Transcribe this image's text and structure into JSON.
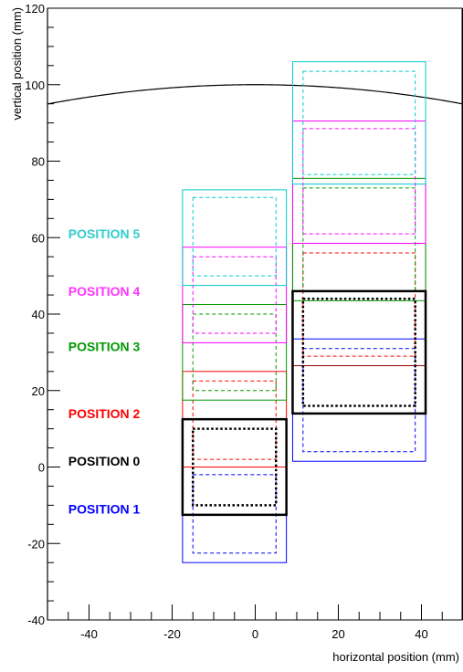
{
  "chart_data": {
    "type": "diagram",
    "xlabel": "horizontal position (mm)",
    "ylabel": "vertical position (mm)",
    "xlim": [
      -50,
      50
    ],
    "ylim": [
      -40,
      120
    ],
    "x_tick_labels": [
      "-40",
      "-20",
      "0",
      "20",
      "40"
    ],
    "y_tick_labels": [
      "-40",
      "-20",
      "0",
      "20",
      "40",
      "60",
      "80",
      "100",
      "120"
    ],
    "x_major_ticks": [
      -40,
      -20,
      0,
      20,
      40
    ],
    "y_major_ticks": [
      -40,
      -20,
      0,
      20,
      40,
      60,
      80,
      100,
      120
    ],
    "x_minor_step": 5,
    "y_minor_step": 5,
    "boundary_lines_x": [
      -50,
      50
    ],
    "arc": {
      "center_x": 0,
      "center_y": -150,
      "radius": 250,
      "color": "#000000"
    },
    "colors": {
      "blue": "#0000ff",
      "black": "#000000",
      "red": "#ff0000",
      "green": "#009900",
      "magenta": "#ff00ff",
      "cyan": "#00cccc",
      "brown": "#990000"
    },
    "labels": [
      {
        "text": "POSITION 5",
        "x": -45,
        "y": 61,
        "color": "#33cccc"
      },
      {
        "text": "POSITION 4",
        "x": -45,
        "y": 46,
        "color": "#ff33ff"
      },
      {
        "text": "POSITION 3",
        "x": -45,
        "y": 31.5,
        "color": "#009900"
      },
      {
        "text": "POSITION 2",
        "x": -45,
        "y": 14,
        "color": "#ff0000"
      },
      {
        "text": "POSITION 0",
        "x": -45,
        "y": 1.5,
        "color": "#000000"
      },
      {
        "text": "POSITION 1",
        "x": -45,
        "y": -11,
        "color": "#0000ff"
      }
    ],
    "rects": [
      {
        "x1": -17.5,
        "x2": 7.5,
        "y1": -25,
        "y2": 0,
        "color": "#0000ff",
        "style": "solid",
        "width": 1
      },
      {
        "x1": -15,
        "x2": 5,
        "y1": -22.5,
        "y2": -2,
        "color": "#0000ff",
        "style": "dashed",
        "width": 1
      },
      {
        "x1": -17.5,
        "x2": 7.5,
        "y1": 0,
        "y2": 25,
        "color": "#ff0000",
        "style": "solid",
        "width": 1
      },
      {
        "x1": -15,
        "x2": 5,
        "y1": 2,
        "y2": 22.5,
        "color": "#ff0000",
        "style": "dashed",
        "width": 1
      },
      {
        "x1": -17.5,
        "x2": 7.5,
        "y1": 17.5,
        "y2": 42.5,
        "color": "#009900",
        "style": "solid",
        "width": 1
      },
      {
        "x1": -15,
        "x2": 5,
        "y1": 20,
        "y2": 40,
        "color": "#009900",
        "style": "dashed",
        "width": 1
      },
      {
        "x1": -17.5,
        "x2": 7.5,
        "y1": 32.5,
        "y2": 57.5,
        "color": "#ff00ff",
        "style": "solid",
        "width": 1
      },
      {
        "x1": -15,
        "x2": 5,
        "y1": 35,
        "y2": 55,
        "color": "#ff00ff",
        "style": "dashed",
        "width": 1
      },
      {
        "x1": -17.5,
        "x2": 7.5,
        "y1": 47.5,
        "y2": 72.5,
        "color": "#00cccc",
        "style": "solid",
        "width": 1
      },
      {
        "x1": -15,
        "x2": 5,
        "y1": 50,
        "y2": 70.5,
        "color": "#00cccc",
        "style": "dashed",
        "width": 1
      },
      {
        "x1": -17.5,
        "x2": 7.5,
        "y1": -12.5,
        "y2": 12.5,
        "color": "#000000",
        "style": "solid",
        "width": 2.5
      },
      {
        "x1": -15,
        "x2": 5,
        "y1": -10,
        "y2": 10,
        "color": "#000000",
        "style": "dotted",
        "width": 2.5
      },
      {
        "x1": 9,
        "x2": 41,
        "y1": 1.5,
        "y2": 33.5,
        "color": "#0000ff",
        "style": "solid",
        "width": 1
      },
      {
        "x1": 11.5,
        "x2": 38.5,
        "y1": 4,
        "y2": 31,
        "color": "#0000ff",
        "style": "dashed",
        "width": 1
      },
      {
        "x1": 9,
        "x2": 41,
        "y1": 26.5,
        "y2": 58.5,
        "color": "#990000",
        "style": "solid",
        "width": 1
      },
      {
        "x1": 11.5,
        "x2": 38.5,
        "y1": 29,
        "y2": 56,
        "color": "#ff0000",
        "style": "dashed",
        "width": 1
      },
      {
        "x1": 9,
        "x2": 41,
        "y1": 43.5,
        "y2": 75.5,
        "color": "#009900",
        "style": "solid",
        "width": 1
      },
      {
        "x1": 11.5,
        "x2": 38.5,
        "y1": 46,
        "y2": 73,
        "color": "#009900",
        "style": "dashed",
        "width": 1
      },
      {
        "x1": 9,
        "x2": 41,
        "y1": 58.5,
        "y2": 90.5,
        "color": "#ff00ff",
        "style": "solid",
        "width": 1
      },
      {
        "x1": 11.5,
        "x2": 38.5,
        "y1": 61,
        "y2": 88.5,
        "color": "#ff00ff",
        "style": "dashed",
        "width": 1
      },
      {
        "x1": 9,
        "x2": 41,
        "y1": 74,
        "y2": 106,
        "color": "#00cccc",
        "style": "solid",
        "width": 1
      },
      {
        "x1": 11.5,
        "x2": 38.5,
        "y1": 76.5,
        "y2": 103.5,
        "color": "#00cccc",
        "style": "dashed",
        "width": 1
      },
      {
        "x1": 9,
        "x2": 41,
        "y1": 14,
        "y2": 46,
        "color": "#000000",
        "style": "solid",
        "width": 2.5
      },
      {
        "x1": 11.5,
        "x2": 38.5,
        "y1": 16,
        "y2": 44,
        "color": "#000000",
        "style": "dotted",
        "width": 2.5
      }
    ]
  }
}
